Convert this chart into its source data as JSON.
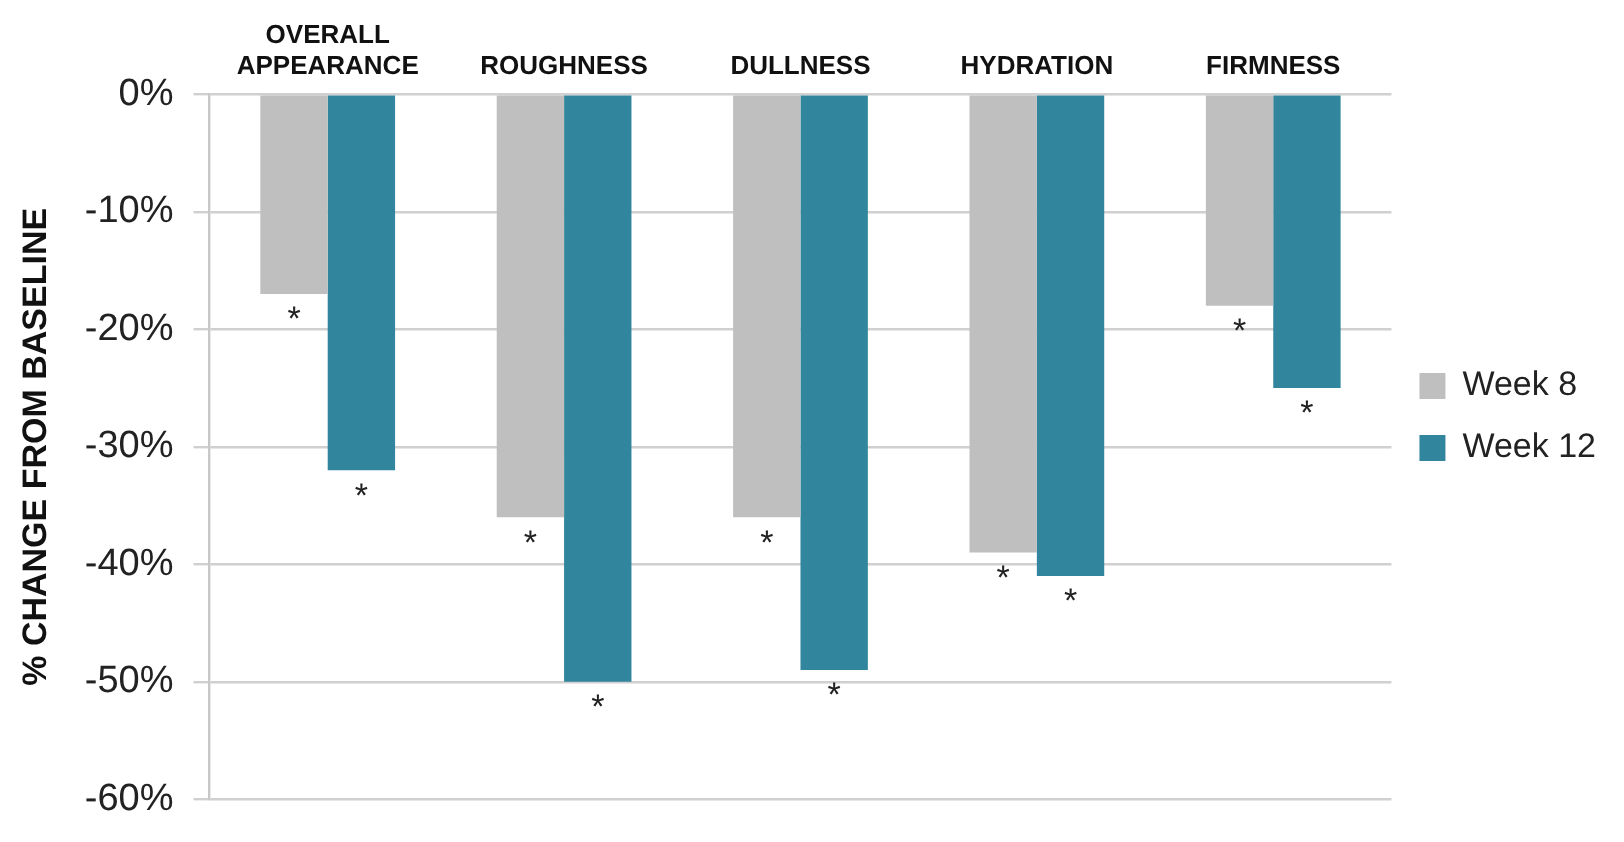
{
  "chart_data": {
    "type": "bar",
    "ylabel": "% CHANGE FROM BASELINE",
    "categories": [
      "OVERALL APPEARANCE",
      "ROUGHNESS",
      "DULLNESS",
      "HYDRATION",
      "FIRMNESS"
    ],
    "series": [
      {
        "name": "Week 8",
        "color": "#bfbfbf",
        "values": [
          -17,
          -36,
          -36,
          -39,
          -18
        ]
      },
      {
        "name": "Week 12",
        "color": "#31859c",
        "values": [
          -32,
          -50,
          -49,
          -41,
          -25
        ]
      }
    ],
    "ylim": [
      -60,
      0
    ],
    "yticks": [
      {
        "value": -60,
        "label": "-60%"
      },
      {
        "value": -50,
        "label": "-50%"
      },
      {
        "value": -40,
        "label": "-40%"
      },
      {
        "value": -30,
        "label": "-30%"
      },
      {
        "value": -20,
        "label": "-20%"
      },
      {
        "value": -10,
        "label": "-10%"
      },
      {
        "value": 0,
        "label": "0%"
      }
    ],
    "grid": "y",
    "legend": "right",
    "annotations": [
      {
        "text": "*",
        "x": "OVERALL APPEARANCE",
        "y": -17
      },
      {
        "text": "*",
        "x": "OVERALL APPEARANCE",
        "y": -32
      },
      {
        "text": "*",
        "x": "ROUGHNESS",
        "y": -36
      },
      {
        "text": "*",
        "x": "ROUGHNESS",
        "y": -50
      },
      {
        "text": "*",
        "x": "DULLNESS",
        "y": -36
      },
      {
        "text": "*",
        "x": "DULLNESS",
        "y": -49
      },
      {
        "text": "*",
        "x": "HYDRATION",
        "y": -39
      },
      {
        "text": "*",
        "x": "HYDRATION",
        "y": -41
      },
      {
        "text": "*",
        "x": "FIRMNESS",
        "y": -18
      },
      {
        "text": "*",
        "x": "FIRMNESS",
        "y": -25
      }
    ]
  }
}
